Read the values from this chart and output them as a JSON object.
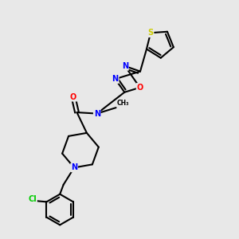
{
  "background_color": "#e8e8e8",
  "bond_color": "#000000",
  "bond_width": 1.5,
  "atom_colors": {
    "S": "#cccc00",
    "N": "#0000ff",
    "O": "#ff0000",
    "Cl": "#00cc00",
    "C": "#000000"
  },
  "fig_w": 3.0,
  "fig_h": 3.0,
  "dpi": 100,
  "xlim": [
    0,
    10
  ],
  "ylim": [
    0,
    10
  ]
}
